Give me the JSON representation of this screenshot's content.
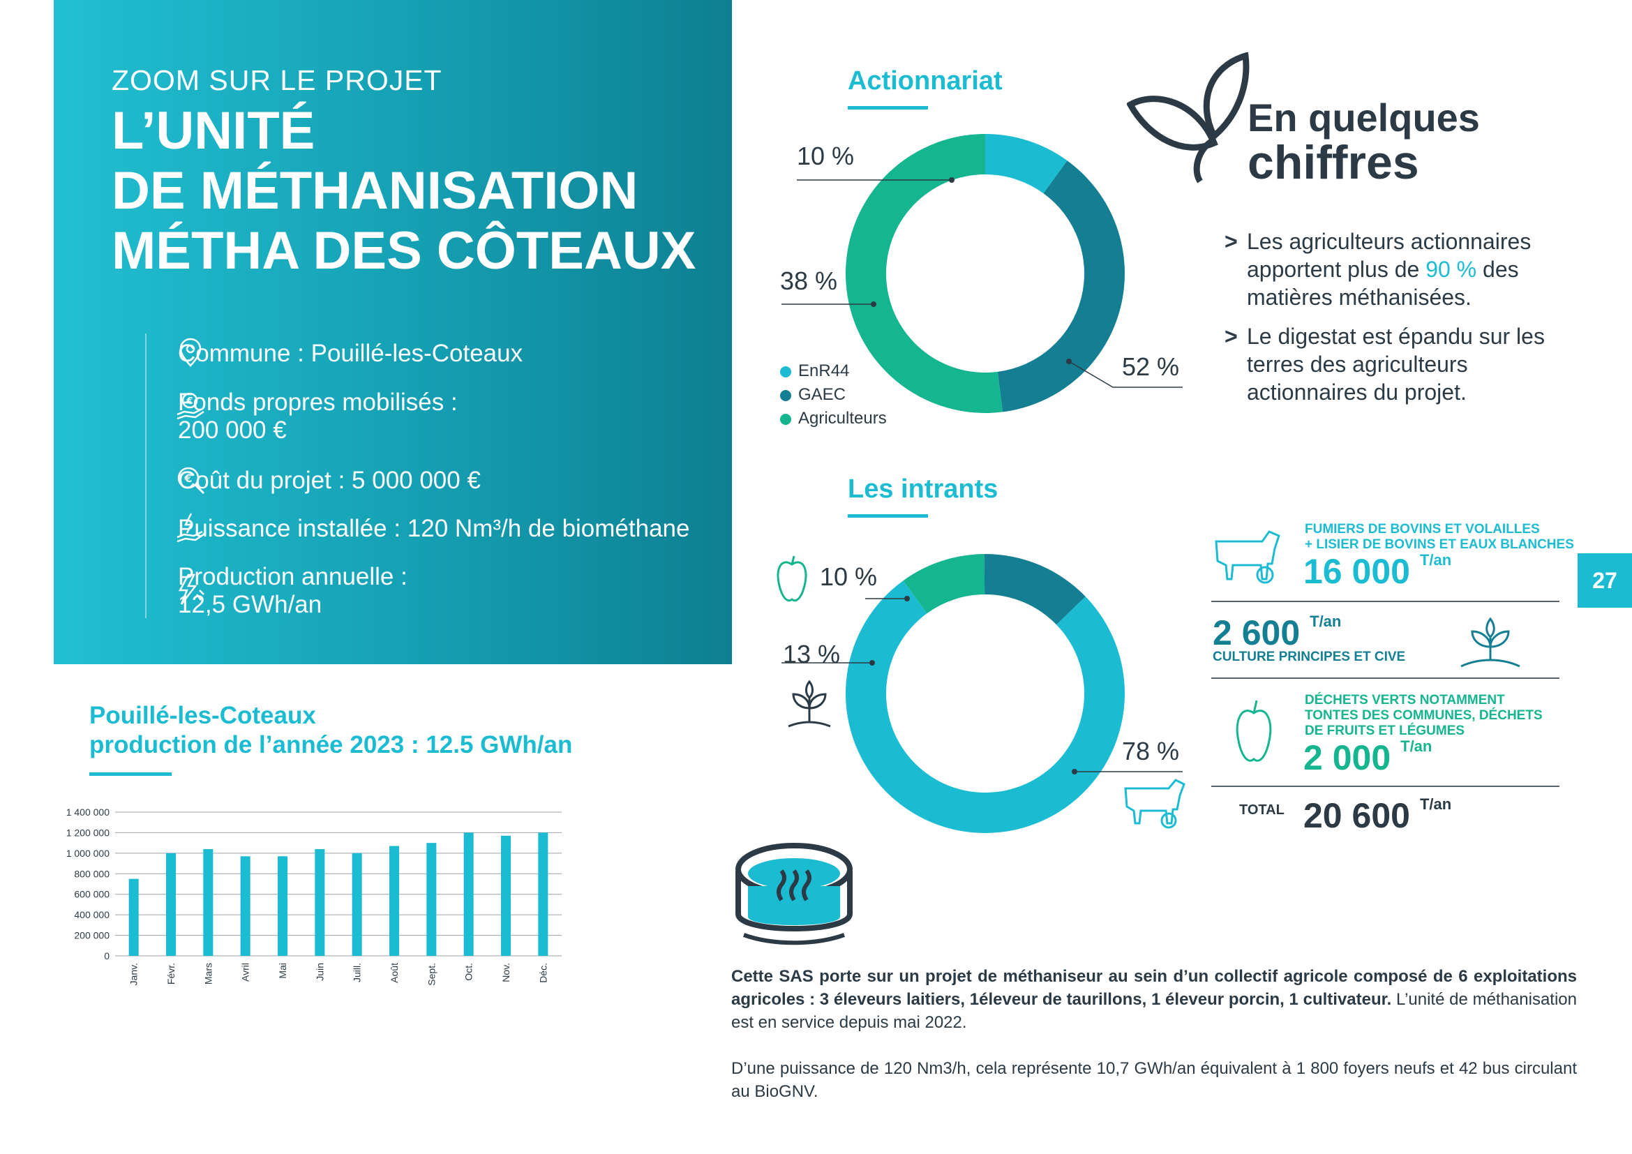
{
  "hero": {
    "kicker": "ZOOM SUR LE PROJET",
    "title_line1": "L’UNITÉ",
    "title_line2": "DE MÉTHANISATION",
    "title_line3": "MÉTHA DES CÔTEAUX",
    "facts": [
      {
        "icon": "location-pin-icon",
        "text": "Commune : Pouillé-les-Coteaux"
      },
      {
        "icon": "euro-hand-icon",
        "line1": "Fonds propres mobilisés :",
        "line2": "200 000 €"
      },
      {
        "icon": "euro-search-icon",
        "text": "Coût du projet : 5 000 000 €"
      },
      {
        "icon": "energy-hand-icon",
        "text": "Puissance installée : 120 Nm³/h de biométhane"
      },
      {
        "icon": "lightning-icon",
        "line1": "Production annuelle :",
        "line2": "12,5 GWh/an"
      }
    ]
  },
  "actionnariat": {
    "heading": "Actionnariat",
    "labels": [
      "10 %",
      "38 %",
      "52 %"
    ],
    "legend": [
      "EnR44",
      "GAEC",
      "Agriculteurs"
    ]
  },
  "intrants": {
    "heading": "Les intrants",
    "labels": [
      "10 %",
      "13 %",
      "78 %"
    ]
  },
  "chiffres": {
    "line1": "En quelques",
    "line2": "chiffres",
    "bullet1_a": "Les agriculteurs actionnaires apportent plus de ",
    "bullet1_accent": "90 %",
    "bullet1_b": " des matières méthanisées.",
    "bullet2": "Le digestat est épandu sur les terres des agriculteurs actionnaires du projet.",
    "gt": ">"
  },
  "inputs_table": {
    "row1_cap1": "FUMIERS DE BOVINS ET VOLAILLES",
    "row1_cap2": "+ LISIER DE BOVINS ET EAUX BLANCHES",
    "row1_num": "16 000",
    "row2_num": "2 600",
    "row2_cap": "CULTURE PRINCIPES ET CIVE",
    "row3_cap1": "DÉCHETS VERTS NOTAMMENT",
    "row3_cap2": "TONTES DES COMMUNES, DÉCHETS",
    "row3_cap3": "DE FRUITS ET LÉGUMES",
    "row3_num": "2 000",
    "total_label": "TOTAL",
    "total_num": "20 600",
    "unit": "T/an"
  },
  "production": {
    "heading_line1": "Pouillé-les-Coteaux",
    "heading_line2": "production de l’année 2023 : 12.5 GWh/an"
  },
  "chart_data": [
    {
      "type": "pie",
      "categories": [
        "EnR44",
        "GAEC",
        "Agriculteurs"
      ],
      "values": [
        10,
        38,
        52
      ],
      "colors": [
        "#1bbcd2",
        "#147f92",
        "#14b58f"
      ]
    },
    {
      "type": "pie",
      "categories": [
        "",
        "",
        ""
      ],
      "values": [
        10,
        13,
        78
      ],
      "colors": [
        "#14b58f",
        "#147f92",
        "#1bbcd2"
      ]
    },
    {
      "type": "bar",
      "categories": [
        "Janv.",
        "Févr.",
        "Mars",
        "Avril",
        "Mai",
        "Juin",
        "Juill.",
        "Août",
        "Sept.",
        "Oct.",
        "Nov.",
        "Déc."
      ],
      "values": [
        750000,
        1000000,
        1040000,
        970000,
        970000,
        1040000,
        1000000,
        1070000,
        1100000,
        1200000,
        1170000,
        1200000
      ],
      "ylim": [
        0,
        1400000
      ],
      "yticks": [
        "0",
        "200 000",
        "400 000",
        "600 000",
        "800 000",
        "1 000 000",
        "1 200 000",
        "1 400 000"
      ],
      "grid": true,
      "color": "#1bbcd2"
    }
  ],
  "description": {
    "bold": "Cette SAS porte sur un projet de méthaniseur au sein d’un collectif agricole composé de 6 exploitations agricoles : 3 éleveurs laitiers, 1éleveur de taurillons, 1 éleveur porcin, 1 cultivateur.",
    "normal": "L’unité de méthanisation est en service depuis mai 2022.",
    "para2": "D’une puissance de 120 Nm3/h, cela représente 10,7 GWh/an équivalent à 1 800 foyers neufs et 42 bus circulant au BioGNV."
  },
  "page": {
    "number": "27"
  }
}
